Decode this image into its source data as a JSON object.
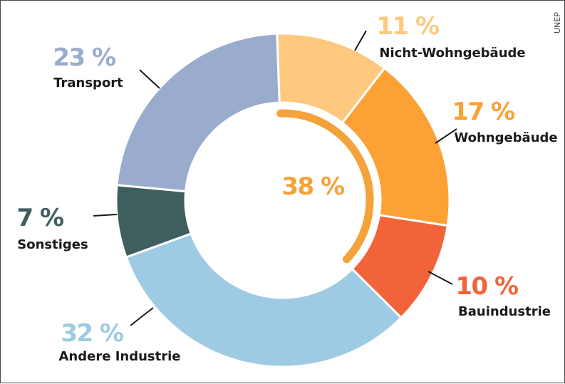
{
  "credit": "UNEP",
  "center_label": "38 %",
  "chart_data": {
    "type": "donut",
    "unit": "%",
    "center_value": 38,
    "center_group": [
      "Nicht-Wohngebäude",
      "Wohngebäude",
      "Bauindustrie"
    ],
    "slices": [
      {
        "label": "Nicht-Wohngebäude",
        "value": 11,
        "display": "11 %",
        "color": "#fec97f"
      },
      {
        "label": "Wohngebäude",
        "value": 17,
        "display": "17 %",
        "color": "#fba135"
      },
      {
        "label": "Bauindustrie",
        "value": 10,
        "display": "10 %",
        "color": "#f26339"
      },
      {
        "label": "Andere Industrie",
        "value": 32,
        "display": "32 %",
        "color": "#9ecae4"
      },
      {
        "label": "Sonstiges",
        "value": 7,
        "display": "7 %",
        "color": "#3f5f5f"
      },
      {
        "label": "Transport",
        "value": 23,
        "display": "23 %",
        "color": "#9aaccd"
      }
    ],
    "accent_arc_color": "#f4a23a",
    "center_label_color": "#f4a23a"
  }
}
